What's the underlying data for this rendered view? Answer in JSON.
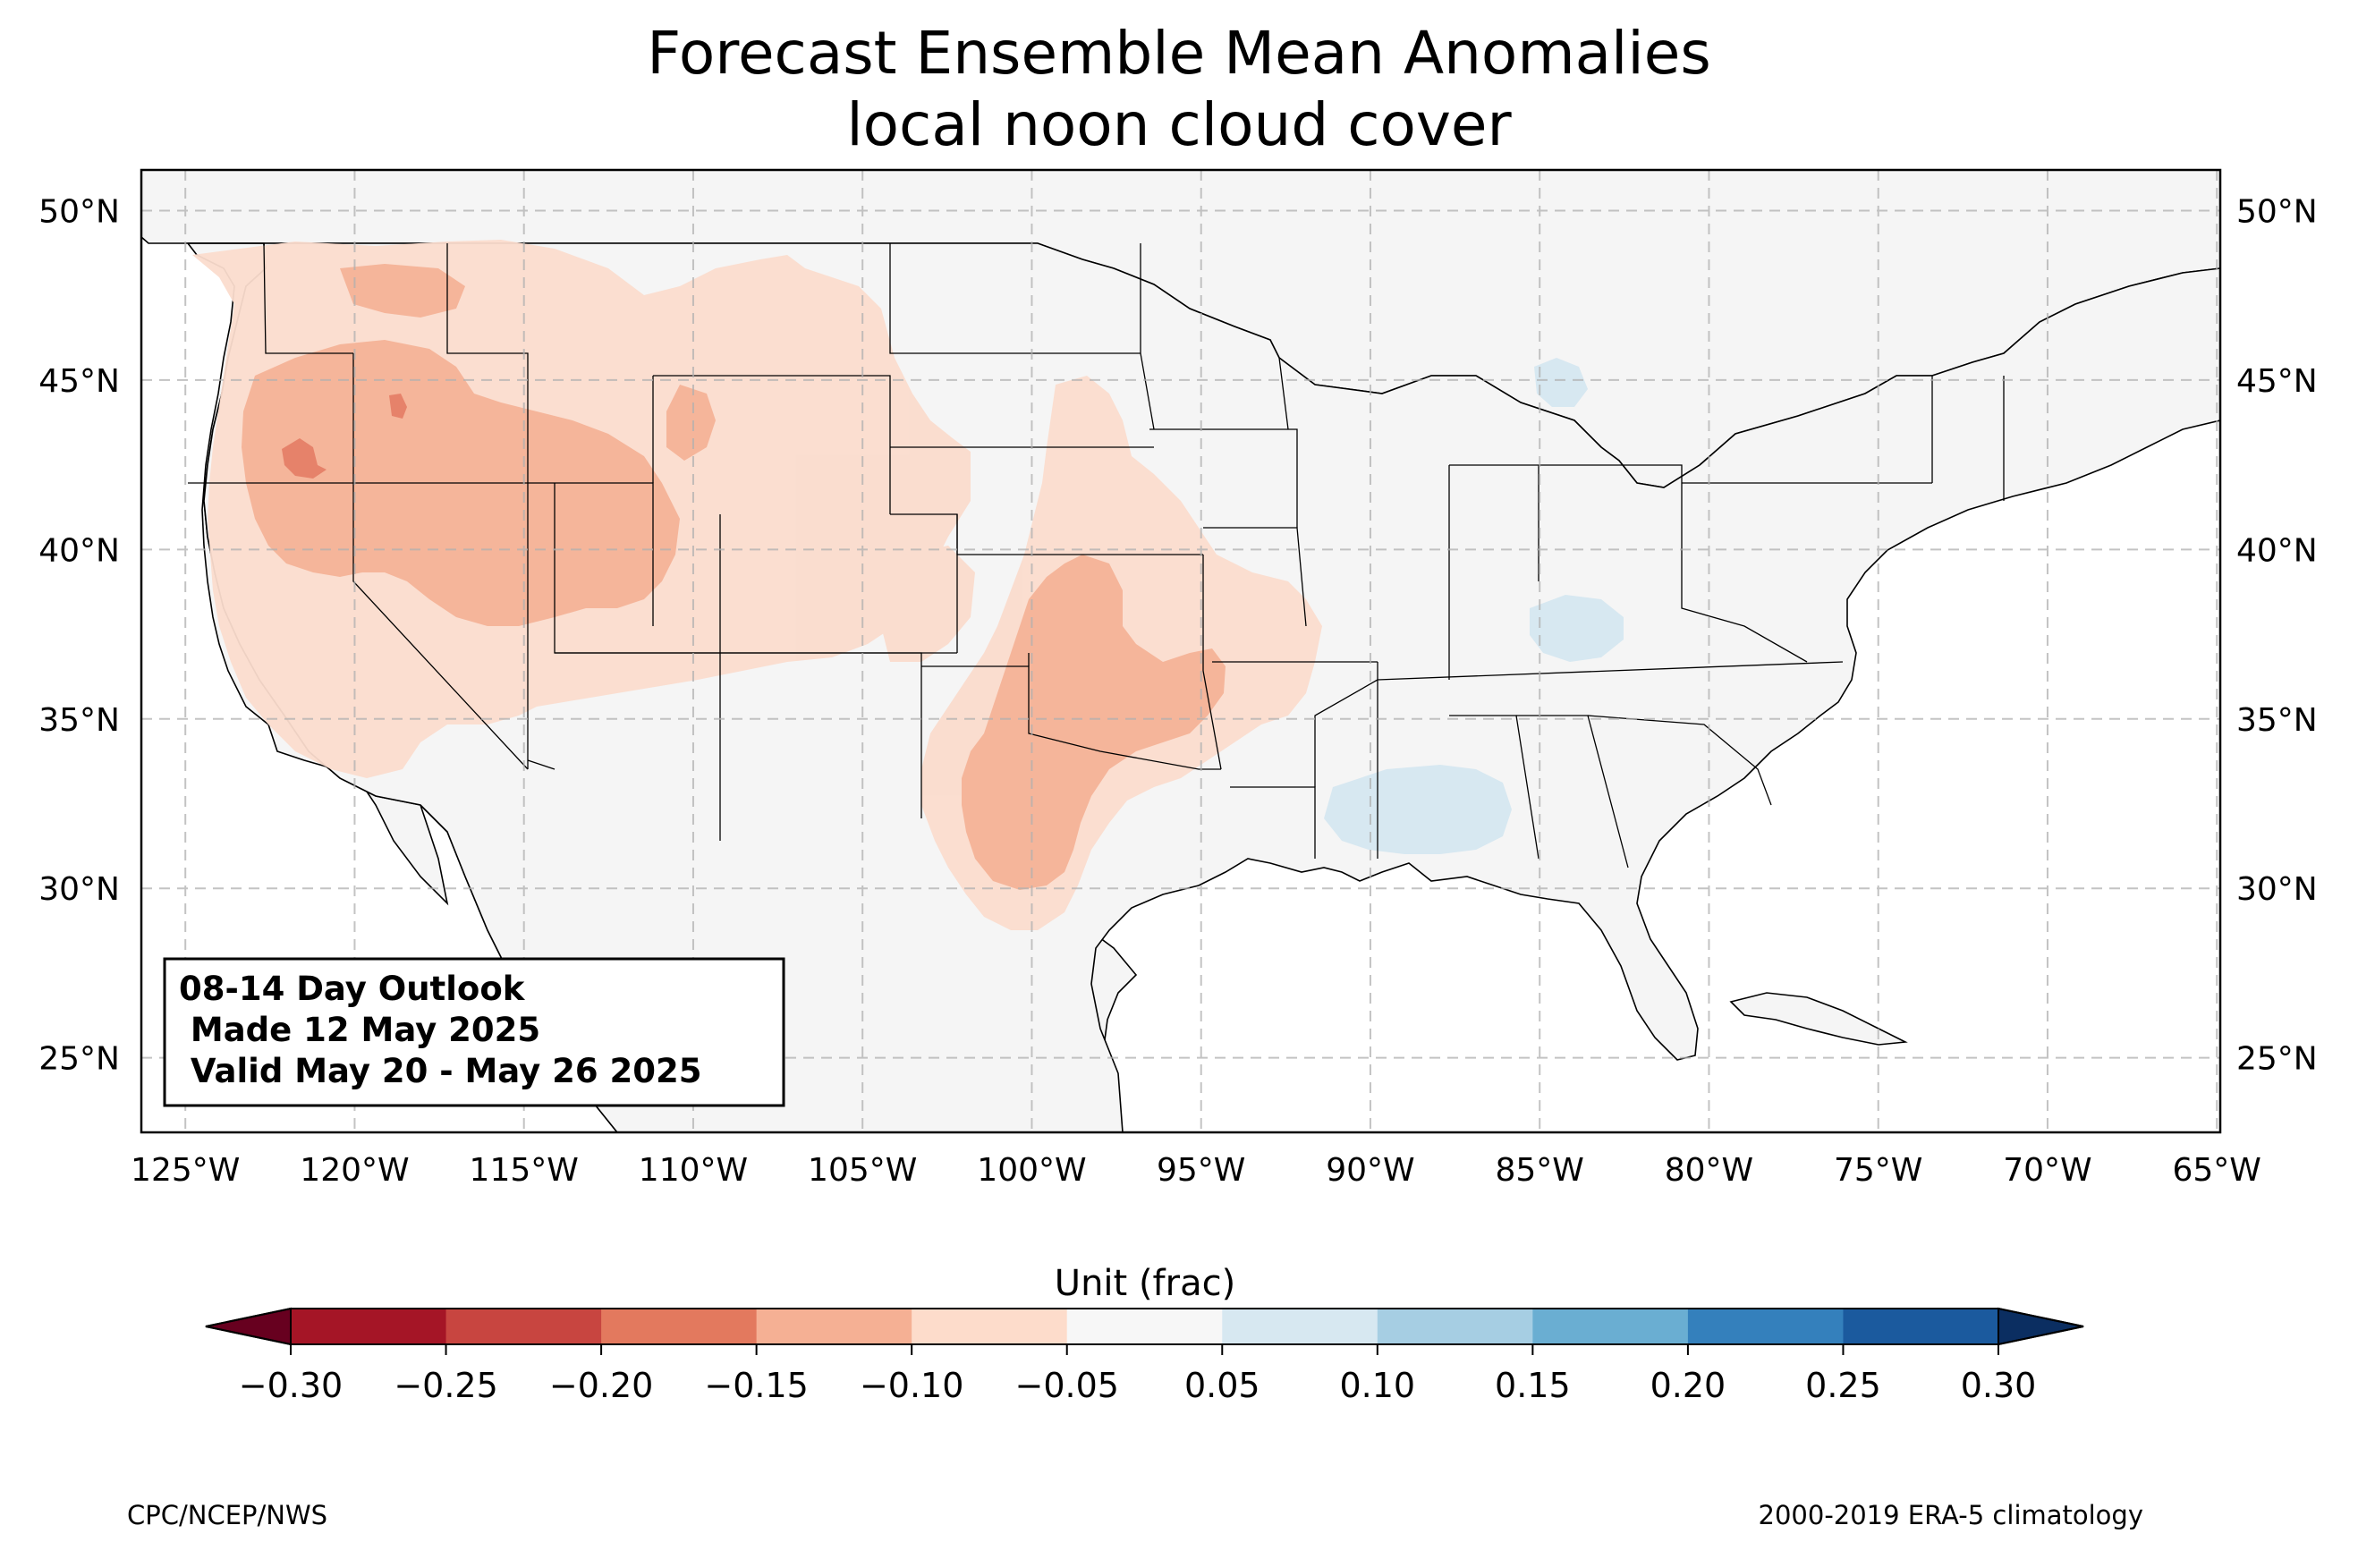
{
  "title_line1": "Forecast Ensemble Mean Anomalies",
  "title_line2": "local noon cloud cover",
  "map": {
    "lon_range": [
      -126.3,
      -64.9
    ],
    "lat_range": [
      22.8,
      51.2
    ],
    "lon_ticks": [
      -125,
      -120,
      -115,
      -110,
      -105,
      -100,
      -95,
      -90,
      -85,
      -80,
      -75,
      -70,
      -65
    ],
    "lon_tick_labels": [
      "125°W",
      "120°W",
      "115°W",
      "110°W",
      "105°W",
      "100°W",
      "95°W",
      "90°W",
      "85°W",
      "80°W",
      "75°W",
      "70°W",
      "65°W"
    ],
    "lat_ticks": [
      25,
      30,
      35,
      40,
      45,
      50
    ],
    "lat_tick_labels": [
      "25°N",
      "30°N",
      "35°N",
      "40°N",
      "45°N",
      "50°N"
    ],
    "gridlines": "dashed",
    "colors": {
      "land": "#f5f5f5",
      "ocean": "#ffffff",
      "light_red": "#fbdccd",
      "medium_red": "#f5b59a",
      "dark_red": "#e6826a",
      "light_blue": "#d7e8f1"
    }
  },
  "info_box": {
    "line1": "08-14 Day Outlook",
    "line2": " Made 12 May 2025",
    "line3": " Valid May 20 - May 26 2025"
  },
  "colorbar": {
    "label": "Unit (frac)",
    "boundaries": [
      -0.3,
      -0.25,
      -0.2,
      -0.15,
      -0.1,
      -0.05,
      0.05,
      0.1,
      0.15,
      0.2,
      0.25,
      0.3
    ],
    "tick_labels": [
      "−0.30",
      "−0.25",
      "−0.20",
      "−0.15",
      "−0.10",
      "−0.05",
      "0.05",
      "0.10",
      "0.15",
      "0.20",
      "0.25",
      "0.30"
    ],
    "bin_colors": [
      "#a51526",
      "#c84540",
      "#e3795e",
      "#f5b094",
      "#fddccb",
      "#f7f7f7",
      "#d7e8f1",
      "#a6cee3",
      "#6aaed2",
      "#3480bc",
      "#1b5a9e"
    ],
    "extend_low_color": "#67001f",
    "extend_high_color": "#0b2e61"
  },
  "footer_left": "CPC/NCEP/NWS",
  "footer_right": "2000-2019 ERA-5 climatology"
}
